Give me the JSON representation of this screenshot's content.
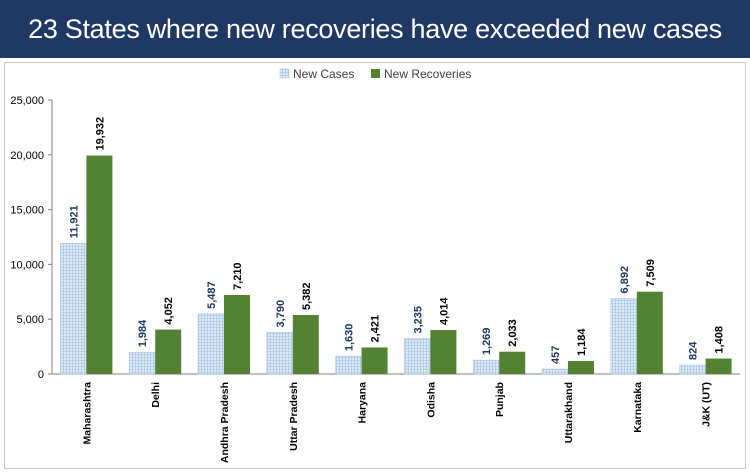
{
  "banner": {
    "title": "23 States where new recoveries have exceeded new cases"
  },
  "colors": {
    "banner_bg": "#1f3864",
    "new_cases_fill": "#dce9f6",
    "new_cases_pattern": "#9fbfe0",
    "new_recoveries_fill": "#548235",
    "value_label_cases": "#1f3864",
    "value_label_recoveries": "#000000"
  },
  "chart_data": {
    "type": "bar",
    "title": "",
    "xlabel": "",
    "ylabel": "",
    "ylim": [
      0,
      25000
    ],
    "yticks": [
      0,
      5000,
      10000,
      15000,
      20000,
      25000
    ],
    "ytick_labels": [
      "0",
      "5,000",
      "10,000",
      "15,000",
      "20,000",
      "25,000"
    ],
    "grid": false,
    "legend_position": "top-center",
    "categories": [
      "Maharashtra",
      "Delhi",
      "Andhra Pradesh",
      "Uttar Pradesh",
      "Haryana",
      "Odisha",
      "Punjab",
      "Uttarakhand",
      "Karnataka",
      "J&K (UT)"
    ],
    "series": [
      {
        "name": "New Cases",
        "values": [
          11921,
          1984,
          5487,
          3790,
          1630,
          3235,
          1269,
          457,
          6892,
          824
        ],
        "labels": [
          "11,921",
          "1,984",
          "5,487",
          "3,790",
          "1,630",
          "3,235",
          "1,269",
          "457",
          "6,892",
          "824"
        ]
      },
      {
        "name": "New Recoveries",
        "values": [
          19932,
          4052,
          7210,
          5382,
          2421,
          4014,
          2033,
          1184,
          7509,
          1408
        ],
        "labels": [
          "19,932",
          "4,052",
          "7,210",
          "5,382",
          "2,421",
          "4,014",
          "2,033",
          "1,184",
          "7,509",
          "1,408"
        ]
      }
    ]
  }
}
